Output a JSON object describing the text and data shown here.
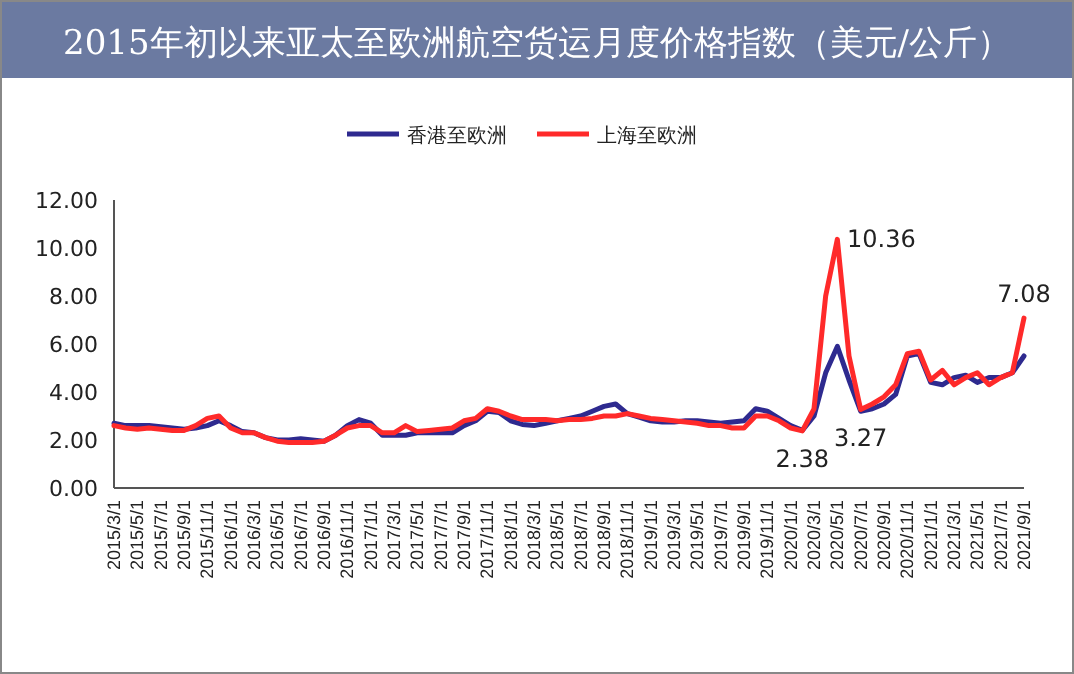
{
  "chart_data": {
    "type": "line",
    "title": "2015年初以来亚太至欧洲航空货运月度价格指数（美元/公斤）",
    "categories": [
      "2015/3/1",
      null,
      "2015/5/1",
      null,
      "2015/7/1",
      null,
      "2015/9/1",
      null,
      "2015/11/1",
      null,
      "2016/1/1",
      null,
      "2016/3/1",
      null,
      "2016/5/1",
      null,
      "2016/7/1",
      null,
      "2016/9/1",
      null,
      "2016/11/1",
      null,
      "2017/1/1",
      null,
      "2017/3/1",
      null,
      "2017/5/1",
      null,
      "2017/7/1",
      null,
      "2017/9/1",
      null,
      "2017/11/1",
      null,
      "2018/1/1",
      null,
      "2018/3/1",
      null,
      "2018/5/1",
      null,
      "2018/7/1",
      null,
      "2018/9/1",
      null,
      "2018/11/1",
      null,
      "2019/1/1",
      null,
      "2019/3/1",
      null,
      "2019/5/1",
      null,
      "2019/7/1",
      null,
      "2019/9/1",
      null,
      "2019/11/1",
      null,
      "2020/1/1",
      null,
      "2020/3/1",
      null,
      "2020/5/1",
      null,
      "2020/7/1",
      null,
      "2020/9/1",
      null,
      "2020/11/1",
      null,
      "2021/1/1",
      null,
      "2021/3/1",
      null,
      "2021/5/1",
      null,
      "2021/7/1",
      null,
      "2021/9/1"
    ],
    "series": [
      {
        "name": "香港至欧洲",
        "color": "#2e2a8f",
        "values": [
          2.7,
          2.6,
          2.6,
          2.6,
          2.55,
          2.5,
          2.45,
          2.5,
          2.6,
          2.8,
          2.6,
          2.35,
          2.3,
          2.1,
          2.0,
          2.0,
          2.05,
          2.0,
          1.95,
          2.2,
          2.6,
          2.85,
          2.7,
          2.2,
          2.2,
          2.2,
          2.3,
          2.3,
          2.3,
          2.3,
          2.6,
          2.8,
          3.2,
          3.15,
          2.8,
          2.65,
          2.6,
          2.7,
          2.8,
          2.9,
          3.0,
          3.2,
          3.4,
          3.5,
          3.1,
          2.95,
          2.8,
          2.75,
          2.75,
          2.8,
          2.8,
          2.75,
          2.7,
          2.75,
          2.8,
          3.3,
          3.2,
          2.9,
          2.6,
          2.4,
          3.0,
          4.8,
          5.9,
          4.5,
          3.2,
          3.3,
          3.5,
          3.9,
          5.5,
          5.6,
          4.4,
          4.3,
          4.6,
          4.7,
          4.4,
          4.6,
          4.6,
          4.8,
          5.5
        ]
      },
      {
        "name": "上海至欧洲",
        "color": "#ff2a2a",
        "values": [
          2.6,
          2.5,
          2.45,
          2.5,
          2.45,
          2.4,
          2.4,
          2.6,
          2.9,
          3.0,
          2.5,
          2.3,
          2.3,
          2.1,
          1.95,
          1.9,
          1.9,
          1.9,
          1.95,
          2.2,
          2.5,
          2.6,
          2.6,
          2.3,
          2.3,
          2.6,
          2.35,
          2.4,
          2.45,
          2.5,
          2.8,
          2.9,
          3.3,
          3.2,
          3.0,
          2.85,
          2.85,
          2.85,
          2.8,
          2.85,
          2.85,
          2.9,
          3.0,
          3.0,
          3.1,
          3.0,
          2.9,
          2.85,
          2.8,
          2.75,
          2.7,
          2.6,
          2.6,
          2.5,
          2.5,
          3.0,
          3.0,
          2.8,
          2.5,
          2.38,
          3.3,
          8.0,
          10.36,
          5.5,
          3.27,
          3.5,
          3.8,
          4.3,
          5.6,
          5.7,
          4.5,
          4.9,
          4.3,
          4.6,
          4.8,
          4.3,
          4.6,
          4.8,
          7.08
        ],
        "value_labels": [
          null,
          null,
          null,
          null,
          null,
          null,
          null,
          null,
          null,
          null,
          null,
          null,
          null,
          null,
          null,
          null,
          null,
          null,
          null,
          null,
          null,
          null,
          null,
          null,
          null,
          null,
          null,
          null,
          null,
          null,
          null,
          null,
          null,
          null,
          null,
          null,
          null,
          null,
          null,
          null,
          null,
          null,
          null,
          null,
          null,
          null,
          null,
          null,
          null,
          null,
          null,
          null,
          null,
          null,
          null,
          null,
          null,
          null,
          null,
          "2.38",
          null,
          null,
          "10.36",
          null,
          "3.27",
          null,
          null,
          null,
          null,
          null,
          null,
          null,
          null,
          null,
          null,
          null,
          null,
          null,
          "7.08"
        ]
      }
    ],
    "ylim": [
      0,
      12
    ],
    "yticks": [
      {
        "value": 0,
        "label": "0.00"
      },
      {
        "value": 2,
        "label": "2.00"
      },
      {
        "value": 4,
        "label": "4.00"
      },
      {
        "value": 6,
        "label": "6.00"
      },
      {
        "value": 8,
        "label": "8.00"
      },
      {
        "value": 10,
        "label": "10.00"
      },
      {
        "value": 12,
        "label": "12.00"
      }
    ],
    "grid": false,
    "legend": "top"
  }
}
